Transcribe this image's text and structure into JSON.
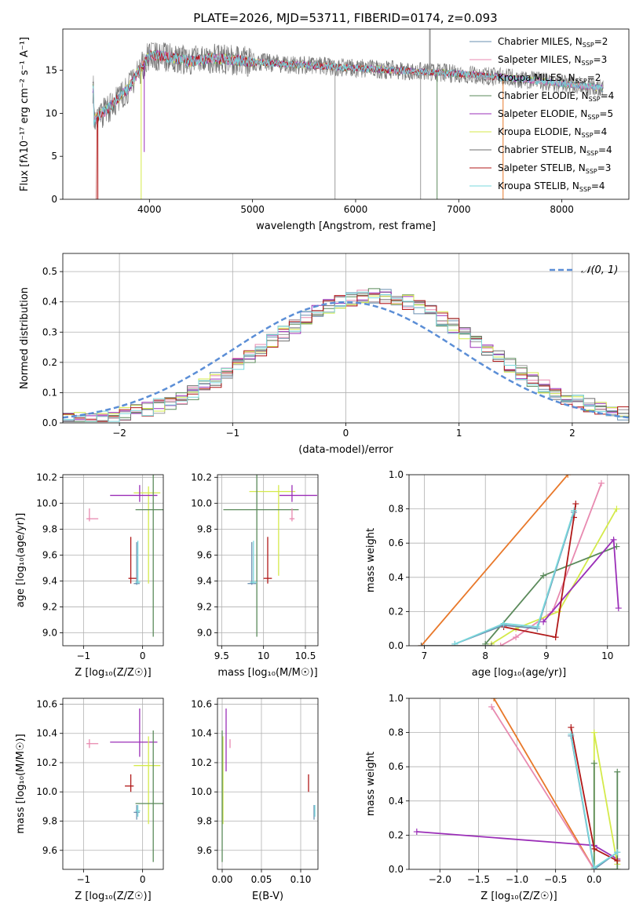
{
  "figure_title": "PLATE=2026, MJD=53711, FIBERID=0174, z=0.093",
  "colors": [
    "#6a8fb0",
    "#e88ab0",
    "#9b9b9b",
    "#5b8a5b",
    "#9b2fb8",
    "#d4ea4a",
    "#6e6e6e",
    "#b01818",
    "#7ad8dc"
  ],
  "chart_data": [
    {
      "id": "spectrum",
      "type": "line",
      "title": "PLATE=2026, MJD=53711, FIBERID=0174, z=0.093",
      "xlabel": "wavelength [Angstrom, rest frame]",
      "ylabel": "Flux [f$_\\lambda$10$^{-17}$ erg cm$^{-2}$ s$^{-1}$ A$^{-1}$]",
      "ylabel_display": "Flux [fλ10⁻¹⁷ erg cm⁻² s⁻¹ A⁻¹]",
      "xlim": [
        3160,
        8650
      ],
      "ylim": [
        0,
        19.8
      ],
      "xticks": [
        4000,
        5000,
        6000,
        7000,
        8000
      ],
      "yticks": [
        0,
        5,
        10,
        15
      ],
      "grid": false,
      "legend_position": "right",
      "continuum_x": [
        3460,
        3600,
        3800,
        4000,
        4200,
        4400,
        4600,
        4800,
        5000,
        5200,
        5500,
        5800,
        6100,
        6400,
        6700,
        7000,
        7300,
        7600,
        7900,
        8200,
        8400
      ],
      "continuum_y": [
        9.2,
        10.6,
        13.0,
        16.8,
        16.5,
        16.0,
        16.4,
        16.2,
        16.0,
        15.8,
        15.6,
        15.4,
        15.2,
        15.0,
        14.8,
        14.6,
        14.3,
        14.0,
        13.6,
        13.2,
        12.9
      ],
      "series": [
        {
          "name": "Chabrier MILES, N$_{SSP}$=2",
          "label": "Chabrier MILES, N",
          "sub": "SSP",
          "suffix": "=2",
          "color": "#6a8fb0"
        },
        {
          "name": "Salpeter MILES, N$_{SSP}$=3",
          "label": "Salpeter MILES, N",
          "sub": "SSP",
          "suffix": "=3",
          "color": "#e88ab0"
        },
        {
          "name": "Kroupa MILES, N$_{SSP}$=2",
          "label": "Kroupa MILES, N",
          "sub": "SSP",
          "suffix": "=2",
          "color": "#9b9b9b"
        },
        {
          "name": "Chabrier ELODIE, N$_{SSP}$=4",
          "label": "Chabrier ELODIE, N",
          "sub": "SSP",
          "suffix": "=4",
          "color": "#5b8a5b"
        },
        {
          "name": "Salpeter ELODIE, N$_{SSP}$=5",
          "label": "Salpeter ELODIE, N",
          "sub": "SSP",
          "suffix": "=5",
          "color": "#9b2fb8"
        },
        {
          "name": "Kroupa ELODIE, N$_{SSP}$=4",
          "label": "Kroupa ELODIE, N",
          "sub": "SSP",
          "suffix": "=4",
          "color": "#d4ea4a"
        },
        {
          "name": "Chabrier STELIB, N$_{SSP}$=4",
          "label": "Chabrier STELIB, N",
          "sub": "SSP",
          "suffix": "=4",
          "color": "#6e6e6e"
        },
        {
          "name": "Salpeter STELIB, N$_{SSP}$=3",
          "label": "Salpeter STELIB, N",
          "sub": "SSP",
          "suffix": "=3",
          "color": "#b01818"
        },
        {
          "name": "Kroupa STELIB, N$_{SSP}$=4",
          "label": "Kroupa STELIB, N",
          "sub": "SSP",
          "suffix": "=4",
          "color": "#7ad8dc"
        }
      ]
    },
    {
      "id": "residuals",
      "type": "line",
      "xlabel": "(data-model)/error",
      "ylabel": "Normed distribution",
      "xlim": [
        -2.5,
        2.5
      ],
      "ylim": [
        0,
        0.56
      ],
      "xticks": [
        -2,
        -1,
        0,
        1,
        2
      ],
      "yticks": [
        0.0,
        0.1,
        0.2,
        0.3,
        0.4,
        0.5
      ],
      "grid": true,
      "legend_position": "top-right",
      "reference_curve": {
        "name": "$\\mathcal{N}(0,1)$",
        "label_display": "𝒩(0, 1)",
        "color": "#5b8ed6",
        "style": "dashed"
      },
      "bin_width": 0.1
    },
    {
      "id": "z-age",
      "type": "scatter",
      "xlabel": "Z [log$_{10}$(Z/Z$_\\odot$)]",
      "xlabel_display": "Z [log₁₀(Z/Z☉)]",
      "ylabel": "age  [log$_{10}$(age/yr)]",
      "ylabel_display": "age  [log₁₀(age/yr)]",
      "xlim": [
        -1.35,
        0.35
      ],
      "ylim": [
        8.9,
        10.22
      ],
      "xticks": [
        -1,
        0
      ],
      "yticks": [
        9.0,
        9.2,
        9.4,
        9.6,
        9.8,
        10.0,
        10.2
      ],
      "grid": true,
      "points": [
        {
          "x": 0.1,
          "y": 10.08,
          "xerr": [
            0.25,
            0.2
          ],
          "yerr": [
            0.7,
            0.05
          ],
          "color": "#d4ea4a"
        },
        {
          "x": -0.05,
          "y": 10.06,
          "xerr": [
            0.5,
            0.3
          ],
          "yerr": [
            0.05,
            0.08
          ],
          "color": "#9b2fb8"
        },
        {
          "x": 0.18,
          "y": 9.95,
          "xerr": [
            0.3,
            0.2
          ],
          "yerr": [
            0.98,
            0.28
          ],
          "color": "#5b8a5b"
        },
        {
          "x": -0.9,
          "y": 9.88,
          "xerr": [
            0.05,
            0.15
          ],
          "yerr": [
            0.02,
            0.08
          ],
          "color": "#e88ab0"
        },
        {
          "x": -0.2,
          "y": 9.42,
          "xerr": [
            0.04,
            0.1
          ],
          "yerr": [
            0.04,
            0.32
          ],
          "color": "#b01818"
        },
        {
          "x": -0.1,
          "y": 9.38,
          "xerr": [
            0.05,
            0.05
          ],
          "yerr": [
            0.01,
            0.32
          ],
          "color": "#6a8fb0"
        },
        {
          "x": -0.08,
          "y": 9.39,
          "xerr": [
            0.04,
            0.04
          ],
          "yerr": [
            0.01,
            0.32
          ],
          "color": "#7ad8dc"
        }
      ]
    },
    {
      "id": "mass-age",
      "type": "scatter",
      "xlabel": "mass [log$_{10}$(M/M$_\\odot$)]",
      "xlabel_display": "mass [log₁₀(M/M☉)]",
      "ylabel": "",
      "xlim": [
        9.45,
        10.65
      ],
      "ylim": [
        8.9,
        10.22
      ],
      "xticks": [
        9.5,
        10.0,
        10.5
      ],
      "yticks": [
        9.0,
        9.2,
        9.4,
        9.6,
        9.8,
        10.0,
        10.2
      ],
      "grid": true,
      "points": [
        {
          "x": 10.18,
          "y": 10.09,
          "xerr": [
            0.35,
            0.2
          ],
          "yerr": [
            0.65,
            0.05
          ],
          "color": "#d4ea4a"
        },
        {
          "x": 10.34,
          "y": 10.06,
          "xerr": [
            0.15,
            0.3
          ],
          "yerr": [
            0.05,
            0.08
          ],
          "color": "#9b2fb8"
        },
        {
          "x": 9.92,
          "y": 9.95,
          "xerr": [
            0.4,
            0.5
          ],
          "yerr": [
            0.98,
            0.28
          ],
          "color": "#5b8a5b"
        },
        {
          "x": 10.34,
          "y": 9.88,
          "xerr": [
            0.03,
            0.03
          ],
          "yerr": [
            0.02,
            0.08
          ],
          "color": "#e88ab0"
        },
        {
          "x": 10.05,
          "y": 9.42,
          "xerr": [
            0.05,
            0.05
          ],
          "yerr": [
            0.04,
            0.32
          ],
          "color": "#b01818"
        },
        {
          "x": 9.86,
          "y": 9.38,
          "xerr": [
            0.05,
            0.05
          ],
          "yerr": [
            0.01,
            0.32
          ],
          "color": "#6a8fb0"
        },
        {
          "x": 9.88,
          "y": 9.39,
          "xerr": [
            0.04,
            0.04
          ],
          "yerr": [
            0.01,
            0.32
          ],
          "color": "#7ad8dc"
        }
      ]
    },
    {
      "id": "age-weight",
      "type": "line",
      "xlabel": "age  [log$_{10}$(age/yr)]",
      "xlabel_display": "age  [log₁₀(age/yr)]",
      "ylabel": "mass weight",
      "xlim": [
        6.75,
        10.35
      ],
      "ylim": [
        0,
        1.0
      ],
      "xticks": [
        7,
        8,
        9,
        10
      ],
      "yticks": [
        0.0,
        0.2,
        0.4,
        0.6,
        0.8,
        1.0
      ],
      "grid": true,
      "series": [
        {
          "color": "#e8782a",
          "x": [
            6.95,
            9.35
          ],
          "y": [
            0.0,
            1.0
          ]
        },
        {
          "color": "#e88ab0",
          "x": [
            8.25,
            8.5,
            9.1,
            9.9
          ],
          "y": [
            0.0,
            0.05,
            0.2,
            0.95
          ]
        },
        {
          "color": "#d4ea4a",
          "x": [
            8.1,
            8.5,
            9.2,
            10.15
          ],
          "y": [
            0.01,
            0.1,
            0.2,
            0.8
          ]
        },
        {
          "color": "#5b8a5b",
          "x": [
            8.0,
            8.95,
            10.15
          ],
          "y": [
            0.01,
            0.41,
            0.58
          ]
        },
        {
          "color": "#9b2fb8",
          "x": [
            8.95,
            10.1,
            10.18
          ],
          "y": [
            0.14,
            0.62,
            0.22
          ]
        },
        {
          "color": "#b01818",
          "x": [
            8.3,
            9.15,
            9.45,
            9.48
          ],
          "y": [
            0.11,
            0.05,
            0.75,
            0.83
          ]
        },
        {
          "color": "#6a8fb0",
          "x": [
            7.5,
            8.3,
            8.85,
            9.45
          ],
          "y": [
            0.01,
            0.12,
            0.1,
            0.78
          ]
        },
        {
          "color": "#7ad8dc",
          "x": [
            7.5,
            8.3,
            8.85,
            9.45
          ],
          "y": [
            0.01,
            0.13,
            0.11,
            0.79
          ]
        },
        {
          "color": "#6e6e6e",
          "x": [
            6.95,
            8.1
          ],
          "y": [
            0.0,
            0.0
          ]
        }
      ]
    },
    {
      "id": "z-mass",
      "type": "scatter",
      "xlabel": "Z [log$_{10}$(Z/Z$_\\odot$)]",
      "xlabel_display": "Z [log₁₀(Z/Z☉)]",
      "ylabel": "mass [log$_{10}$(M/M$_\\odot$)]",
      "ylabel_display": "mass [log₁₀(M/M☉)]",
      "xlim": [
        -1.35,
        0.35
      ],
      "ylim": [
        9.47,
        10.64
      ],
      "xticks": [
        -1,
        0
      ],
      "yticks": [
        9.6,
        9.8,
        10.0,
        10.2,
        10.4,
        10.6
      ],
      "grid": true,
      "points": [
        {
          "x": -0.05,
          "y": 10.34,
          "xerr": [
            0.5,
            0.3
          ],
          "yerr": [
            0.1,
            0.23
          ],
          "color": "#9b2fb8"
        },
        {
          "x": -0.9,
          "y": 10.33,
          "xerr": [
            0.05,
            0.15
          ],
          "yerr": [
            0.03,
            0.03
          ],
          "color": "#e88ab0"
        },
        {
          "x": 0.1,
          "y": 10.18,
          "xerr": [
            0.25,
            0.2
          ],
          "yerr": [
            0.4,
            0.2
          ],
          "color": "#d4ea4a"
        },
        {
          "x": -0.2,
          "y": 10.04,
          "xerr": [
            0.1,
            0.05
          ],
          "yerr": [
            0.04,
            0.08
          ],
          "color": "#b01818"
        },
        {
          "x": 0.18,
          "y": 9.92,
          "xerr": [
            0.3,
            0.2
          ],
          "yerr": [
            0.4,
            0.5
          ],
          "color": "#5b8a5b"
        },
        {
          "x": -0.1,
          "y": 9.86,
          "xerr": [
            0.05,
            0.05
          ],
          "yerr": [
            0.05,
            0.05
          ],
          "color": "#6a8fb0"
        },
        {
          "x": -0.08,
          "y": 9.87,
          "xerr": [
            0.04,
            0.04
          ],
          "yerr": [
            0.04,
            0.04
          ],
          "color": "#7ad8dc"
        }
      ]
    },
    {
      "id": "ebv-mass",
      "type": "scatter",
      "xlabel": "E(B-V)",
      "ylabel": "",
      "xlim": [
        -0.006,
        0.122
      ],
      "ylim": [
        9.47,
        10.64
      ],
      "xticks": [
        0.0,
        0.05,
        0.1
      ],
      "xtick_labels": [
        "0.00",
        "0.05",
        "0.10"
      ],
      "yticks": [
        9.6,
        9.8,
        10.0,
        10.2,
        10.4,
        10.6
      ],
      "grid": true,
      "points": [
        {
          "x": 0.005,
          "y": 10.34,
          "xerr": [
            0,
            0
          ],
          "yerr": [
            0.2,
            0.23
          ],
          "color": "#9b2fb8"
        },
        {
          "x": 0.01,
          "y": 10.33,
          "xerr": [
            0,
            0
          ],
          "yerr": [
            0.03,
            0.03
          ],
          "color": "#e88ab0"
        },
        {
          "x": 0.001,
          "y": 10.18,
          "xerr": [
            0,
            0
          ],
          "yerr": [
            0.4,
            0.2
          ],
          "color": "#d4ea4a"
        },
        {
          "x": 0.11,
          "y": 10.04,
          "xerr": [
            0,
            0
          ],
          "yerr": [
            0.04,
            0.08
          ],
          "color": "#b01818"
        },
        {
          "x": 0.0,
          "y": 9.92,
          "xerr": [
            0,
            0
          ],
          "yerr": [
            0.4,
            0.5
          ],
          "color": "#5b8a5b"
        },
        {
          "x": 0.117,
          "y": 9.86,
          "xerr": [
            0,
            0
          ],
          "yerr": [
            0.05,
            0.05
          ],
          "color": "#6a8fb0"
        },
        {
          "x": 0.118,
          "y": 9.87,
          "xerr": [
            0,
            0
          ],
          "yerr": [
            0.04,
            0.04
          ],
          "color": "#7ad8dc"
        }
      ]
    },
    {
      "id": "z-weight",
      "type": "line",
      "xlabel": "Z [log$_{10}$(Z/Z$_\\odot$)]",
      "xlabel_display": "Z [log₁₀(Z/Z☉)]",
      "ylabel": "mass weight",
      "xlim": [
        -2.4,
        0.45
      ],
      "ylim": [
        0,
        1.0
      ],
      "xticks": [
        -2.0,
        -1.5,
        -1.0,
        -0.5,
        0.0
      ],
      "xtick_labels": [
        "−2.0",
        "−1.5",
        "−1.0",
        "−0.5",
        "0.0"
      ],
      "yticks": [
        0.0,
        0.2,
        0.4,
        0.6,
        0.8,
        1.0
      ],
      "grid": true,
      "series": [
        {
          "color": "#e8782a",
          "x": [
            -1.3,
            0.0
          ],
          "y": [
            1.0,
            0.0
          ]
        },
        {
          "color": "#e88ab0",
          "x": [
            -1.33,
            0.0
          ],
          "y": [
            0.95,
            0.0
          ]
        },
        {
          "color": "#9b2fb8",
          "x": [
            -2.3,
            0.0,
            0.3
          ],
          "y": [
            0.22,
            0.14,
            0.06
          ]
        },
        {
          "color": "#d4ea4a",
          "x": [
            0.0,
            0.0,
            0.3
          ],
          "y": [
            0.01,
            0.8,
            0.03
          ]
        },
        {
          "color": "#5b8a5b",
          "x": [
            0.0,
            0.0,
            0.3,
            0.3
          ],
          "y": [
            0.62,
            0.0,
            0.0,
            0.57
          ]
        },
        {
          "color": "#b01818",
          "x": [
            -0.3,
            0.0,
            0.3
          ],
          "y": [
            0.83,
            0.12,
            0.05
          ]
        },
        {
          "color": "#6a8fb0",
          "x": [
            -0.3,
            0.0,
            0.3
          ],
          "y": [
            0.78,
            0.0,
            0.1
          ]
        },
        {
          "color": "#7ad8dc",
          "x": [
            -0.3,
            0.0,
            0.3
          ],
          "y": [
            0.79,
            0.01,
            0.1
          ]
        }
      ]
    }
  ]
}
